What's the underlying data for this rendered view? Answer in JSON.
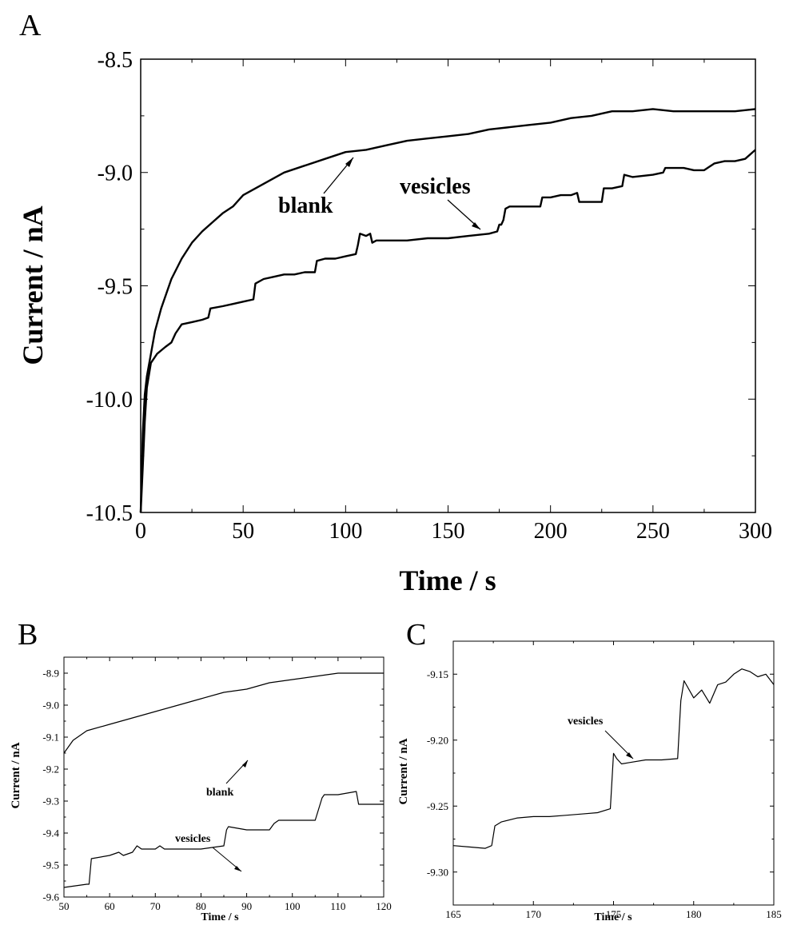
{
  "chart_data": [
    {
      "panel": "A",
      "type": "line",
      "xlabel": "Time / s",
      "ylabel": "Current / nA",
      "xlim": [
        0,
        300
      ],
      "ylim": [
        -10.5,
        -8.5
      ],
      "xticks": [
        "0",
        "50",
        "100",
        "150",
        "200",
        "250",
        "300"
      ],
      "yticks": [
        "-8.5",
        "-9.0",
        "-9.5",
        "-10.0",
        "-10.5"
      ],
      "series": [
        {
          "name": "blank",
          "x": [
            0,
            1,
            2,
            3,
            5,
            7,
            10,
            15,
            20,
            25,
            30,
            35,
            40,
            45,
            50,
            60,
            70,
            80,
            90,
            100,
            110,
            120,
            130,
            140,
            150,
            160,
            170,
            180,
            190,
            200,
            210,
            220,
            230,
            240,
            250,
            260,
            270,
            280,
            290,
            300
          ],
          "y": [
            -10.5,
            -10.15,
            -9.98,
            -9.9,
            -9.8,
            -9.7,
            -9.6,
            -9.47,
            -9.38,
            -9.31,
            -9.26,
            -9.22,
            -9.18,
            -9.15,
            -9.1,
            -9.05,
            -9.0,
            -8.97,
            -8.94,
            -8.91,
            -8.9,
            -8.88,
            -8.86,
            -8.85,
            -8.84,
            -8.83,
            -8.81,
            -8.8,
            -8.79,
            -8.78,
            -8.76,
            -8.75,
            -8.73,
            -8.73,
            -8.72,
            -8.73,
            -8.73,
            -8.73,
            -8.73,
            -8.72
          ]
        },
        {
          "name": "vesicles",
          "x": [
            0,
            1,
            2,
            3,
            5,
            8,
            12,
            15,
            17,
            20,
            25,
            30,
            33,
            34,
            40,
            45,
            50,
            55,
            56,
            60,
            65,
            70,
            75,
            80,
            85,
            86,
            90,
            95,
            100,
            105,
            106,
            107,
            110,
            112,
            113,
            115,
            120,
            130,
            140,
            150,
            160,
            170,
            174,
            175,
            176,
            177,
            178,
            180,
            190,
            195,
            196,
            200,
            205,
            210,
            213,
            214,
            220,
            225,
            226,
            230,
            235,
            236,
            240,
            250,
            255,
            256,
            260,
            265,
            270,
            275,
            280,
            285,
            290,
            295,
            300
          ],
          "y": [
            -10.5,
            -10.3,
            -10.1,
            -9.95,
            -9.84,
            -9.8,
            -9.77,
            -9.75,
            -9.71,
            -9.67,
            -9.66,
            -9.65,
            -9.64,
            -9.6,
            -9.59,
            -9.58,
            -9.57,
            -9.56,
            -9.49,
            -9.47,
            -9.46,
            -9.45,
            -9.45,
            -9.44,
            -9.44,
            -9.39,
            -9.38,
            -9.38,
            -9.37,
            -9.36,
            -9.32,
            -9.27,
            -9.28,
            -9.27,
            -9.31,
            -9.3,
            -9.3,
            -9.3,
            -9.29,
            -9.29,
            -9.28,
            -9.27,
            -9.26,
            -9.23,
            -9.23,
            -9.21,
            -9.16,
            -9.15,
            -9.15,
            -9.15,
            -9.11,
            -9.11,
            -9.1,
            -9.1,
            -9.09,
            -9.13,
            -9.13,
            -9.13,
            -9.07,
            -9.07,
            -9.06,
            -9.01,
            -9.02,
            -9.01,
            -9.0,
            -8.98,
            -8.98,
            -8.98,
            -8.99,
            -8.99,
            -8.96,
            -8.95,
            -8.95,
            -8.94,
            -8.9
          ]
        }
      ],
      "annotations": [
        "blank",
        "vesicles"
      ]
    },
    {
      "panel": "B",
      "type": "line",
      "xlabel": "Time / s",
      "ylabel": "Current / nA",
      "xlim": [
        50,
        120
      ],
      "ylim": [
        -9.6,
        -8.85
      ],
      "xticks": [
        "50",
        "60",
        "70",
        "80",
        "90",
        "100",
        "110",
        "120"
      ],
      "yticks": [
        "-8.9",
        "-9.0",
        "-9.1",
        "-9.2",
        "-9.3",
        "-9.4",
        "-9.5",
        "-9.6"
      ],
      "series": [
        {
          "name": "blank",
          "x": [
            50,
            52,
            55,
            60,
            65,
            70,
            75,
            80,
            85,
            90,
            95,
            100,
            105,
            110,
            115,
            120
          ],
          "y": [
            -9.15,
            -9.11,
            -9.08,
            -9.06,
            -9.04,
            -9.02,
            -9.0,
            -8.98,
            -8.96,
            -8.95,
            -8.93,
            -8.92,
            -8.91,
            -8.9,
            -8.9,
            -8.9
          ]
        },
        {
          "name": "vesicles",
          "x": [
            50,
            55,
            55.5,
            56,
            60,
            62,
            63,
            65,
            66,
            67,
            70,
            71,
            72,
            80,
            85,
            85.6,
            86,
            90,
            95,
            96,
            97,
            100,
            105,
            106.5,
            107,
            110,
            114,
            114.5,
            115,
            120
          ],
          "y": [
            -9.57,
            -9.56,
            -9.56,
            -9.48,
            -9.47,
            -9.46,
            -9.47,
            -9.46,
            -9.44,
            -9.45,
            -9.45,
            -9.44,
            -9.45,
            -9.45,
            -9.44,
            -9.39,
            -9.38,
            -9.39,
            -9.39,
            -9.37,
            -9.36,
            -9.36,
            -9.36,
            -9.29,
            -9.28,
            -9.28,
            -9.27,
            -9.31,
            -9.31,
            -9.31
          ]
        }
      ],
      "annotations": [
        "blank",
        "vesicles"
      ]
    },
    {
      "panel": "C",
      "type": "line",
      "xlabel": "Time / s",
      "ylabel": "Current / nA",
      "xlim": [
        165,
        185
      ],
      "ylim": [
        -9.325,
        -9.125
      ],
      "xticks": [
        "165",
        "170",
        "175",
        "180",
        "185"
      ],
      "yticks": [
        "-9.15",
        "-9.20",
        "-9.25",
        "-9.30"
      ],
      "series": [
        {
          "name": "vesicles",
          "x": [
            165,
            166,
            167,
            167.4,
            167.6,
            168,
            169,
            170,
            171,
            172,
            173,
            174,
            174.8,
            175,
            175.2,
            175.5,
            176,
            177,
            178,
            179,
            179.2,
            179.4,
            180,
            180.5,
            181,
            181.5,
            182,
            182.5,
            183,
            183.5,
            184,
            184.5,
            185
          ],
          "y": [
            -9.28,
            -9.281,
            -9.282,
            -9.28,
            -9.265,
            -9.262,
            -9.259,
            -9.258,
            -9.258,
            -9.257,
            -9.256,
            -9.255,
            -9.252,
            -9.21,
            -9.214,
            -9.218,
            -9.217,
            -9.215,
            -9.215,
            -9.214,
            -9.17,
            -9.155,
            -9.168,
            -9.162,
            -9.172,
            -9.158,
            -9.156,
            -9.15,
            -9.146,
            -9.148,
            -9.152,
            -9.15,
            -9.158
          ]
        }
      ],
      "annotations": [
        "vesicles"
      ]
    }
  ],
  "colors": {
    "line": "#000000",
    "axis": "#000000"
  }
}
